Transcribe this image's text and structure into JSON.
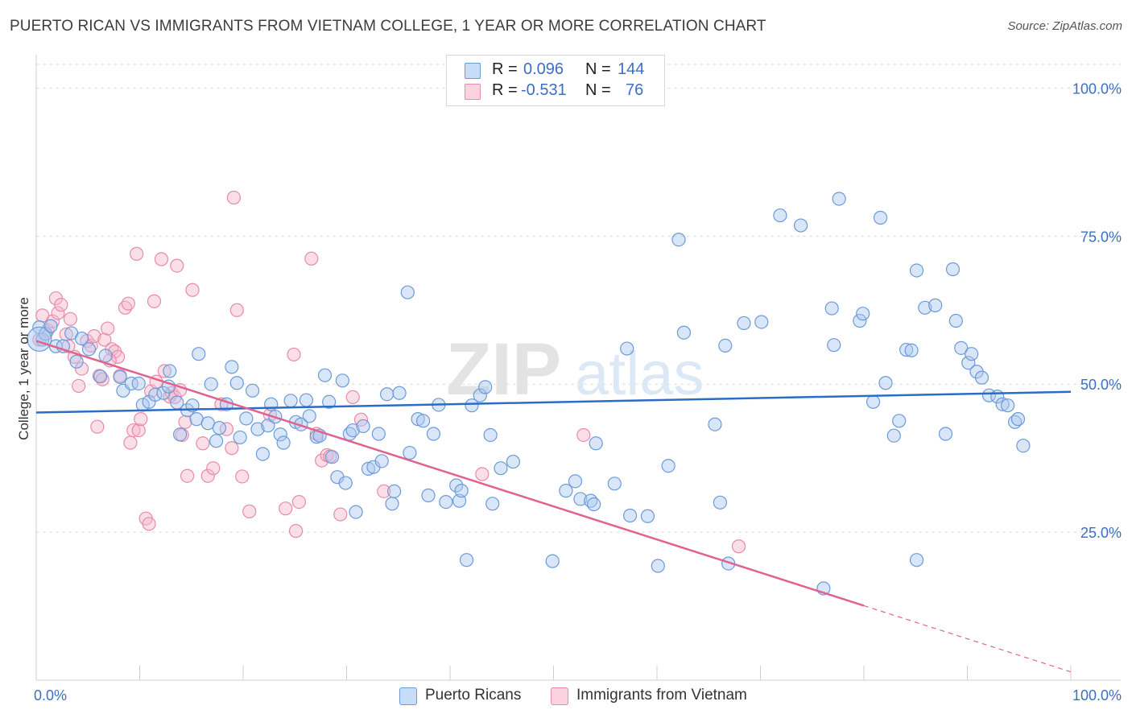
{
  "header": {
    "title": "PUERTO RICAN VS IMMIGRANTS FROM VIETNAM COLLEGE, 1 YEAR OR MORE CORRELATION CHART",
    "source": "Source: ZipAtlas.com"
  },
  "watermark": {
    "zip": "ZIP",
    "atlas": "atlas"
  },
  "legend": {
    "rows": [
      {
        "r_label": "R =",
        "r_value": "0.096",
        "n_label": "N =",
        "n_value": "144",
        "color": "#aac8f0"
      },
      {
        "r_label": "R =",
        "r_value": "-0.531",
        "n_label": "N =",
        "n_value": "76",
        "color": "#f6b7cb"
      }
    ]
  },
  "bottom_legend": {
    "items": [
      {
        "label": "Puerto Ricans",
        "color": "#aac8f0"
      },
      {
        "label": "Immigrants from Vietnam",
        "color": "#f6b7cb"
      }
    ]
  },
  "colors": {
    "blue_fill": "#aac8f0",
    "blue_stroke": "#6b9ad8",
    "blue_line": "#2b6cc4",
    "pink_fill": "#f6b7cb",
    "pink_stroke": "#e88aa8",
    "pink_line": "#e0638f",
    "grid": "#dddddd",
    "axis_label": "#3a6fc4"
  },
  "chart_data": {
    "type": "scatter",
    "title": "PUERTO RICAN VS IMMIGRANTS FROM VIETNAM COLLEGE, 1 YEAR OR MORE CORRELATION CHART",
    "xlabel": "",
    "ylabel": "College, 1 year or more",
    "xlim": [
      0,
      100
    ],
    "ylim": [
      0,
      104
    ],
    "x_tick_labels": [
      "0.0%",
      "100.0%"
    ],
    "y_ticks": [
      25,
      50,
      75,
      100
    ],
    "y_tick_labels": [
      "25.0%",
      "50.0%",
      "75.0%",
      "100.0%"
    ],
    "grid": true,
    "series": [
      {
        "name": "Puerto Ricans",
        "R": 0.096,
        "N": 144,
        "trend": {
          "x": [
            0,
            100
          ],
          "y": [
            45.2,
            48.7
          ],
          "dash_from_x": null
        },
        "points": [
          [
            0.3,
            59.6
          ],
          [
            0.6,
            57.5
          ],
          [
            0.9,
            58.5
          ],
          [
            1.4,
            59.8
          ],
          [
            1.9,
            56.4
          ],
          [
            2.6,
            56.4
          ],
          [
            3.4,
            58.6
          ],
          [
            3.9,
            53.8
          ],
          [
            4.4,
            57.7
          ],
          [
            5.1,
            55.9
          ],
          [
            6.2,
            51.3
          ],
          [
            6.7,
            54.8
          ],
          [
            8.1,
            51.2
          ],
          [
            8.4,
            48.9
          ],
          [
            9.2,
            50.1
          ],
          [
            9.9,
            50.1
          ],
          [
            10.3,
            46.5
          ],
          [
            10.9,
            47.0
          ],
          [
            11.5,
            48.2
          ],
          [
            12.3,
            48.5
          ],
          [
            12.8,
            49.6
          ],
          [
            12.9,
            52.2
          ],
          [
            13.6,
            46.9
          ],
          [
            13.9,
            41.5
          ],
          [
            14.6,
            45.6
          ],
          [
            15.1,
            46.4
          ],
          [
            15.5,
            44.1
          ],
          [
            15.7,
            55.1
          ],
          [
            16.6,
            43.4
          ],
          [
            16.9,
            50.0
          ],
          [
            17.4,
            40.4
          ],
          [
            17.7,
            42.6
          ],
          [
            18.4,
            46.6
          ],
          [
            18.9,
            52.9
          ],
          [
            19.4,
            50.2
          ],
          [
            19.7,
            41.0
          ],
          [
            20.3,
            44.2
          ],
          [
            20.9,
            48.9
          ],
          [
            21.4,
            42.4
          ],
          [
            21.9,
            38.2
          ],
          [
            22.4,
            43.0
          ],
          [
            22.7,
            46.6
          ],
          [
            23.1,
            44.5
          ],
          [
            23.6,
            41.5
          ],
          [
            23.9,
            40.1
          ],
          [
            24.6,
            47.2
          ],
          [
            25.1,
            43.6
          ],
          [
            25.6,
            43.2
          ],
          [
            26.1,
            47.3
          ],
          [
            26.4,
            44.6
          ],
          [
            27.1,
            41.1
          ],
          [
            27.4,
            41.3
          ],
          [
            27.9,
            51.5
          ],
          [
            28.3,
            47.0
          ],
          [
            28.6,
            37.7
          ],
          [
            29.1,
            34.3
          ],
          [
            29.6,
            50.6
          ],
          [
            29.9,
            33.3
          ],
          [
            30.3,
            41.6
          ],
          [
            30.6,
            42.2
          ],
          [
            30.9,
            28.4
          ],
          [
            31.6,
            42.9
          ],
          [
            32.1,
            35.7
          ],
          [
            32.6,
            36.0
          ],
          [
            33.1,
            41.6
          ],
          [
            33.4,
            37.0
          ],
          [
            33.9,
            48.3
          ],
          [
            34.4,
            29.8
          ],
          [
            34.6,
            31.9
          ],
          [
            35.1,
            48.5
          ],
          [
            35.9,
            65.5
          ],
          [
            36.1,
            38.4
          ],
          [
            36.9,
            44.1
          ],
          [
            37.4,
            43.8
          ],
          [
            37.9,
            31.2
          ],
          [
            38.4,
            41.6
          ],
          [
            38.9,
            46.5
          ],
          [
            39.6,
            30.1
          ],
          [
            40.6,
            32.9
          ],
          [
            40.9,
            30.3
          ],
          [
            41.1,
            32.0
          ],
          [
            41.6,
            20.3
          ],
          [
            42.1,
            46.4
          ],
          [
            42.9,
            48.1
          ],
          [
            43.4,
            49.5
          ],
          [
            43.9,
            41.4
          ],
          [
            44.1,
            29.8
          ],
          [
            44.9,
            35.8
          ],
          [
            46.1,
            36.9
          ],
          [
            49.9,
            20.1
          ],
          [
            51.2,
            32.0
          ],
          [
            52.1,
            33.6
          ],
          [
            52.6,
            30.6
          ],
          [
            53.6,
            30.3
          ],
          [
            53.9,
            29.7
          ],
          [
            54.1,
            40.0
          ],
          [
            55.9,
            33.2
          ],
          [
            57.4,
            27.8
          ],
          [
            57.1,
            56.0
          ],
          [
            59.1,
            27.7
          ],
          [
            61.1,
            36.2
          ],
          [
            62.1,
            74.4
          ],
          [
            62.6,
            58.7
          ],
          [
            65.6,
            43.2
          ],
          [
            66.1,
            30.0
          ],
          [
            66.6,
            56.5
          ],
          [
            68.4,
            60.3
          ],
          [
            70.1,
            60.5
          ],
          [
            71.9,
            78.5
          ],
          [
            73.9,
            76.8
          ],
          [
            76.9,
            62.8
          ],
          [
            77.1,
            56.6
          ],
          [
            77.6,
            81.3
          ],
          [
            79.6,
            60.7
          ],
          [
            79.9,
            61.9
          ],
          [
            80.9,
            47.0
          ],
          [
            81.6,
            78.1
          ],
          [
            82.1,
            50.2
          ],
          [
            82.9,
            41.3
          ],
          [
            83.4,
            43.8
          ],
          [
            84.1,
            55.8
          ],
          [
            84.6,
            55.7
          ],
          [
            85.1,
            69.2
          ],
          [
            85.9,
            62.9
          ],
          [
            86.9,
            63.3
          ],
          [
            87.9,
            41.6
          ],
          [
            88.6,
            69.4
          ],
          [
            88.9,
            60.7
          ],
          [
            89.4,
            56.1
          ],
          [
            90.1,
            53.6
          ],
          [
            90.4,
            55.1
          ],
          [
            90.9,
            52.1
          ],
          [
            91.4,
            51.1
          ],
          [
            92.1,
            48.1
          ],
          [
            92.9,
            47.9
          ],
          [
            93.4,
            46.6
          ],
          [
            93.9,
            46.4
          ],
          [
            94.6,
            43.6
          ],
          [
            94.9,
            44.1
          ],
          [
            95.4,
            39.6
          ],
          [
            66.9,
            19.7
          ],
          [
            60.1,
            19.3
          ],
          [
            76.1,
            15.5
          ],
          [
            85.1,
            20.3
          ]
        ]
      },
      {
        "name": "Immigrants from Vietnam",
        "R": -0.531,
        "N": 76,
        "trend": {
          "x": [
            0,
            100
          ],
          "y": [
            57.3,
            1.4
          ],
          "dash_from_x": 80
        },
        "points": [
          [
            0.3,
            57.5
          ],
          [
            0.6,
            61.6
          ],
          [
            1.1,
            59.1
          ],
          [
            1.6,
            60.6
          ],
          [
            1.9,
            64.5
          ],
          [
            2.1,
            62.0
          ],
          [
            2.4,
            63.4
          ],
          [
            2.9,
            58.4
          ],
          [
            3.3,
            61.0
          ],
          [
            3.7,
            54.6
          ],
          [
            4.1,
            49.7
          ],
          [
            4.4,
            52.6
          ],
          [
            4.9,
            57.3
          ],
          [
            5.3,
            56.5
          ],
          [
            5.6,
            58.1
          ],
          [
            5.9,
            42.8
          ],
          [
            6.1,
            51.4
          ],
          [
            6.4,
            50.8
          ],
          [
            6.6,
            57.5
          ],
          [
            6.9,
            59.4
          ],
          [
            7.3,
            55.9
          ],
          [
            7.6,
            55.5
          ],
          [
            7.9,
            54.6
          ],
          [
            8.1,
            51.4
          ],
          [
            8.6,
            62.9
          ],
          [
            8.9,
            63.6
          ],
          [
            9.1,
            40.1
          ],
          [
            9.4,
            42.2
          ],
          [
            9.7,
            72.0
          ],
          [
            9.9,
            42.2
          ],
          [
            10.1,
            44.1
          ],
          [
            10.6,
            27.3
          ],
          [
            10.9,
            26.4
          ],
          [
            11.1,
            48.8
          ],
          [
            11.4,
            64.0
          ],
          [
            11.6,
            50.4
          ],
          [
            12.1,
            71.1
          ],
          [
            12.4,
            52.2
          ],
          [
            12.9,
            47.9
          ],
          [
            13.1,
            48.5
          ],
          [
            13.4,
            47.8
          ],
          [
            13.6,
            70.0
          ],
          [
            13.9,
            49.0
          ],
          [
            14.1,
            41.4
          ],
          [
            14.4,
            43.6
          ],
          [
            14.6,
            34.5
          ],
          [
            15.1,
            65.9
          ],
          [
            16.1,
            40.0
          ],
          [
            16.6,
            34.5
          ],
          [
            17.1,
            35.8
          ],
          [
            17.9,
            46.6
          ],
          [
            18.4,
            42.4
          ],
          [
            18.9,
            39.2
          ],
          [
            19.1,
            81.5
          ],
          [
            19.4,
            62.5
          ],
          [
            19.9,
            34.4
          ],
          [
            20.6,
            28.5
          ],
          [
            22.6,
            44.8
          ],
          [
            24.1,
            29.0
          ],
          [
            24.9,
            55.0
          ],
          [
            25.1,
            25.2
          ],
          [
            25.4,
            30.1
          ],
          [
            26.6,
            71.2
          ],
          [
            27.1,
            41.6
          ],
          [
            27.6,
            37.1
          ],
          [
            28.1,
            38.0
          ],
          [
            28.4,
            37.8
          ],
          [
            29.4,
            28.0
          ],
          [
            30.6,
            47.8
          ],
          [
            31.4,
            44.0
          ],
          [
            33.6,
            31.9
          ],
          [
            43.1,
            34.8
          ],
          [
            52.9,
            41.4
          ],
          [
            67.9,
            22.6
          ],
          [
            7.1,
            54.0
          ],
          [
            3.1,
            56.4
          ]
        ]
      }
    ]
  }
}
